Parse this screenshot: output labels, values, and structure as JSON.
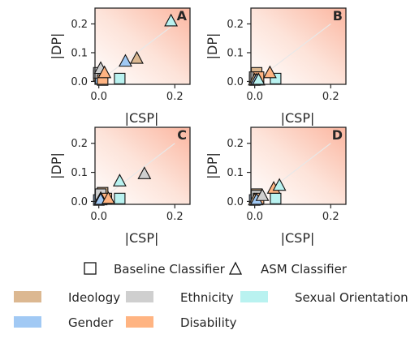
{
  "groups": [
    {
      "name": "Ideology",
      "color": "#dcb891"
    },
    {
      "name": "Gender",
      "color": "#a1c9f4"
    },
    {
      "name": "Ethnicity",
      "color": "#cfcfcf"
    },
    {
      "name": "Disability",
      "color": "#ffb482"
    },
    {
      "name": "Sexual Orientation",
      "color": "#b9f2f0"
    }
  ],
  "markers": {
    "baseline": {
      "label": "Baseline Classifier",
      "shape": "square"
    },
    "asm": {
      "label": "ASM Classifier",
      "shape": "triangle"
    }
  },
  "chart_data": [
    {
      "type": "scatter",
      "panel": "A",
      "xlabel": "|CSP|",
      "ylabel": "|DP|",
      "xlim": [
        -0.01,
        0.24
      ],
      "ylim": [
        -0.01,
        0.255
      ],
      "xticks": [
        "0.0",
        "0.2"
      ],
      "yticks": [
        "0.0",
        "0.1",
        "0.2"
      ],
      "gradient_background": true,
      "series": [
        {
          "name": "Ideology",
          "baseline": [
            0.0,
            0.02
          ],
          "asm": [
            0.1,
            0.08
          ]
        },
        {
          "name": "Gender",
          "baseline": [
            0.005,
            0.01
          ],
          "asm": [
            0.07,
            0.07
          ]
        },
        {
          "name": "Ethnicity",
          "baseline": [
            0.0,
            0.03
          ],
          "asm": [
            0.005,
            0.045
          ]
        },
        {
          "name": "Disability",
          "baseline": [
            0.01,
            0.005
          ],
          "asm": [
            0.015,
            0.03
          ]
        },
        {
          "name": "Sexual Orientation",
          "baseline": [
            0.055,
            0.01
          ],
          "asm": [
            0.19,
            0.21
          ]
        }
      ]
    },
    {
      "type": "scatter",
      "panel": "B",
      "xlabel": "|CSP|",
      "ylabel": "|DP|",
      "xlim": [
        -0.01,
        0.24
      ],
      "ylim": [
        -0.01,
        0.255
      ],
      "xticks": [
        "0.0",
        "0.2"
      ],
      "yticks": [
        "0.0",
        "0.1",
        "0.2"
      ],
      "gradient_background": true,
      "series": [
        {
          "name": "Ideology",
          "baseline": [
            0.005,
            0.03
          ],
          "asm": [
            0.0,
            0.005
          ]
        },
        {
          "name": "Gender",
          "baseline": [
            0.0,
            0.005
          ],
          "asm": [
            0.005,
            0.005
          ]
        },
        {
          "name": "Ethnicity",
          "baseline": [
            0.0,
            0.015
          ],
          "asm": [
            0.01,
            0.005
          ]
        },
        {
          "name": "Disability",
          "baseline": [
            0.01,
            0.015
          ],
          "asm": [
            0.04,
            0.03
          ]
        },
        {
          "name": "Sexual Orientation",
          "baseline": [
            0.055,
            0.01
          ],
          "asm": [
            0.01,
            0.005
          ]
        }
      ]
    },
    {
      "type": "scatter",
      "panel": "C",
      "xlabel": "|CSP|",
      "ylabel": "|DP|",
      "xlim": [
        -0.01,
        0.24
      ],
      "ylim": [
        -0.01,
        0.255
      ],
      "xticks": [
        "0.0",
        "0.2"
      ],
      "yticks": [
        "0.0",
        "0.1",
        "0.2"
      ],
      "gradient_background": true,
      "series": [
        {
          "name": "Ideology",
          "baseline": [
            0.01,
            0.03
          ],
          "asm": [
            0.005,
            0.01
          ]
        },
        {
          "name": "Gender",
          "baseline": [
            0.0,
            0.005
          ],
          "asm": [
            0.005,
            0.005
          ]
        },
        {
          "name": "Ethnicity",
          "baseline": [
            0.005,
            0.025
          ],
          "asm": [
            0.12,
            0.095
          ]
        },
        {
          "name": "Disability",
          "baseline": [
            0.02,
            0.01
          ],
          "asm": [
            0.025,
            0.01
          ]
        },
        {
          "name": "Sexual Orientation",
          "baseline": [
            0.055,
            0.01
          ],
          "asm": [
            0.055,
            0.07
          ]
        }
      ]
    },
    {
      "type": "scatter",
      "panel": "D",
      "xlabel": "|CSP|",
      "ylabel": "|DP|",
      "xlim": [
        -0.01,
        0.24
      ],
      "ylim": [
        -0.01,
        0.255
      ],
      "xticks": [
        "0.0",
        "0.2"
      ],
      "yticks": [
        "0.0",
        "0.1",
        "0.2"
      ],
      "gradient_background": true,
      "series": [
        {
          "name": "Ideology",
          "baseline": [
            0.005,
            0.025
          ],
          "asm": [
            0.0,
            0.005
          ]
        },
        {
          "name": "Gender",
          "baseline": [
            0.0,
            0.005
          ],
          "asm": [
            0.005,
            0.005
          ]
        },
        {
          "name": "Ethnicity",
          "baseline": [
            0.005,
            0.02
          ],
          "asm": [
            0.02,
            0.02
          ]
        },
        {
          "name": "Disability",
          "baseline": [
            0.01,
            0.01
          ],
          "asm": [
            0.05,
            0.045
          ]
        },
        {
          "name": "Sexual Orientation",
          "baseline": [
            0.055,
            0.01
          ],
          "asm": [
            0.065,
            0.055
          ]
        }
      ]
    }
  ]
}
